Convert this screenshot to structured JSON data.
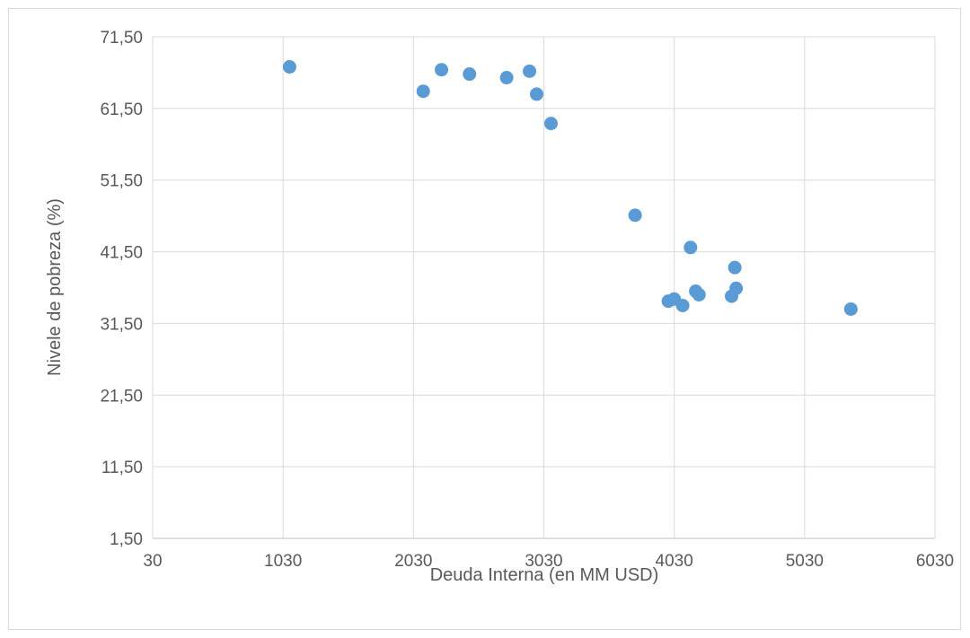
{
  "chart_data": {
    "type": "scatter",
    "xlabel": "Deuda Interna (en MM USD)",
    "ylabel": "Nivele de pobreza (%)",
    "xlim": [
      30,
      6030
    ],
    "ylim": [
      1.5,
      71.5
    ],
    "xticks": [
      30,
      1030,
      2030,
      3030,
      4030,
      5030,
      6030
    ],
    "xtick_labels": [
      "30",
      "1030",
      "2030",
      "3030",
      "4030",
      "5030",
      "6030"
    ],
    "yticks": [
      1.5,
      11.5,
      21.5,
      31.5,
      41.5,
      51.5,
      61.5,
      71.5
    ],
    "ytick_labels": [
      "1,50",
      "11,50",
      "21,50",
      "31,50",
      "41,50",
      "51,50",
      "61,50",
      "71,50"
    ],
    "grid": true,
    "marker_color": "#5b9bd5",
    "series": [
      {
        "points": [
          [
            1080,
            67.3
          ],
          [
            2105,
            63.9
          ],
          [
            2245,
            66.9
          ],
          [
            2460,
            66.3
          ],
          [
            2745,
            65.8
          ],
          [
            2920,
            66.7
          ],
          [
            2975,
            63.5
          ],
          [
            3085,
            59.4
          ],
          [
            3730,
            46.6
          ],
          [
            3985,
            34.6
          ],
          [
            4030,
            34.9
          ],
          [
            4095,
            34.0
          ],
          [
            4155,
            42.1
          ],
          [
            4195,
            36.0
          ],
          [
            4220,
            35.5
          ],
          [
            4470,
            35.3
          ],
          [
            4495,
            39.3
          ],
          [
            4505,
            36.4
          ],
          [
            5385,
            33.5
          ]
        ]
      }
    ]
  }
}
